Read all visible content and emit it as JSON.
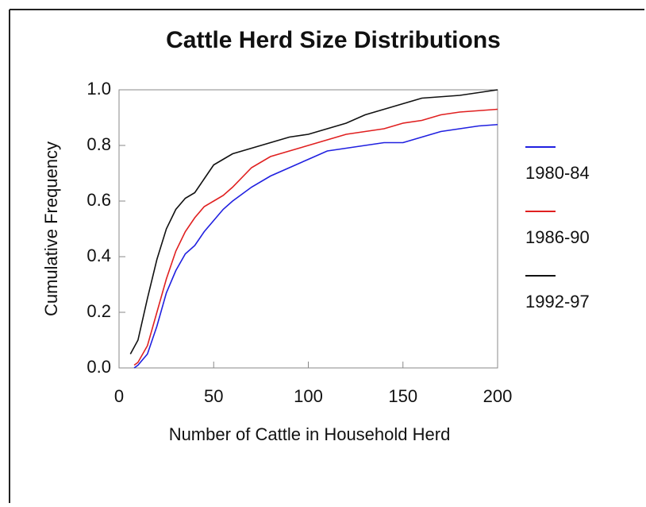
{
  "chart_data": {
    "type": "line",
    "title": "Cattle Herd Size Distributions",
    "x_label": "Number of Cattle in Household Herd",
    "y_label": "Cumulative Frequency",
    "xlim": [
      0,
      200
    ],
    "xticks": [
      0,
      50,
      100,
      150,
      200
    ],
    "ylim": [
      0,
      1
    ],
    "yticks": [
      {
        "value": 0,
        "label": "0.0"
      },
      {
        "value": 0.2,
        "label": "0.2"
      },
      {
        "value": 0.4,
        "label": "0.4"
      },
      {
        "value": 0.6,
        "label": "0.6"
      },
      {
        "value": 0.8,
        "label": "0.8"
      },
      {
        "value": 1,
        "label": "1.0"
      }
    ],
    "series": [
      {
        "name": "1980-84",
        "color": "#2020e0",
        "x": [
          8,
          10,
          15,
          20,
          25,
          30,
          35,
          40,
          45,
          50,
          55,
          60,
          70,
          80,
          90,
          100,
          110,
          120,
          130,
          140,
          150,
          160,
          170,
          180,
          190,
          200
        ],
        "values": [
          0,
          0.01,
          0.05,
          0.15,
          0.27,
          0.35,
          0.41,
          0.44,
          0.49,
          0.53,
          0.57,
          0.6,
          0.65,
          0.69,
          0.72,
          0.75,
          0.78,
          0.79,
          0.8,
          0.81,
          0.81,
          0.83,
          0.85,
          0.86,
          0.87,
          0.875
        ]
      },
      {
        "name": "1986-90",
        "color": "#e02020",
        "x": [
          8,
          10,
          15,
          20,
          25,
          30,
          35,
          40,
          45,
          50,
          55,
          60,
          70,
          80,
          90,
          100,
          110,
          120,
          130,
          140,
          150,
          160,
          170,
          180,
          190,
          200
        ],
        "values": [
          0.01,
          0.02,
          0.08,
          0.2,
          0.32,
          0.42,
          0.49,
          0.54,
          0.58,
          0.6,
          0.62,
          0.65,
          0.72,
          0.76,
          0.78,
          0.8,
          0.82,
          0.84,
          0.85,
          0.86,
          0.88,
          0.89,
          0.91,
          0.92,
          0.925,
          0.93
        ]
      },
      {
        "name": "1992-97",
        "color": "#111111",
        "x": [
          6,
          10,
          15,
          20,
          25,
          30,
          35,
          40,
          45,
          50,
          55,
          60,
          70,
          80,
          90,
          100,
          110,
          120,
          130,
          140,
          150,
          160,
          170,
          180,
          190,
          200
        ],
        "values": [
          0.05,
          0.1,
          0.25,
          0.39,
          0.5,
          0.57,
          0.61,
          0.63,
          0.68,
          0.73,
          0.75,
          0.77,
          0.79,
          0.81,
          0.83,
          0.84,
          0.86,
          0.88,
          0.91,
          0.93,
          0.95,
          0.97,
          0.975,
          0.98,
          0.99,
          1
        ]
      }
    ]
  }
}
